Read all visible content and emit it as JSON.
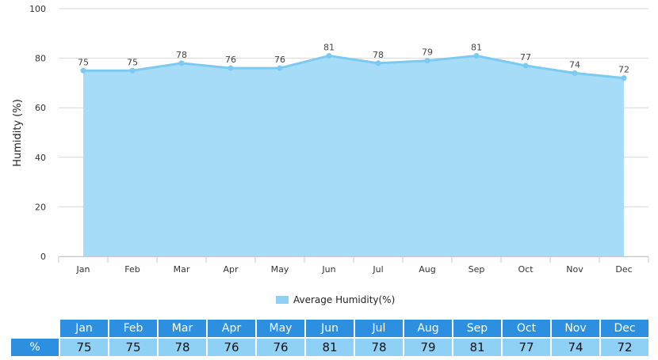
{
  "colors": {
    "area_fill": "#a6dcf8",
    "line": "#7ccaf2",
    "grid": "#d8d8d8",
    "header_bg": "#2d8fe0",
    "cell_bg": "#8fd0f5",
    "legend_swatch": "#8fd0f5"
  },
  "chart_data": {
    "type": "area",
    "categories": [
      "Jan",
      "Feb",
      "Mar",
      "Apr",
      "May",
      "Jun",
      "Jul",
      "Aug",
      "Sep",
      "Oct",
      "Nov",
      "Dec"
    ],
    "series": [
      {
        "name": "Average Humidity(%)",
        "values": [
          75,
          75,
          78,
          76,
          76,
          81,
          78,
          79,
          81,
          77,
          74,
          72
        ]
      }
    ],
    "ylabel": "Humidity (%)",
    "ylim": [
      0,
      100
    ],
    "yticks": [
      0,
      20,
      40,
      60,
      80,
      100
    ],
    "grid": true,
    "legend_position": "bottom-center",
    "data_labels": true
  },
  "table": {
    "row_label": "%"
  }
}
